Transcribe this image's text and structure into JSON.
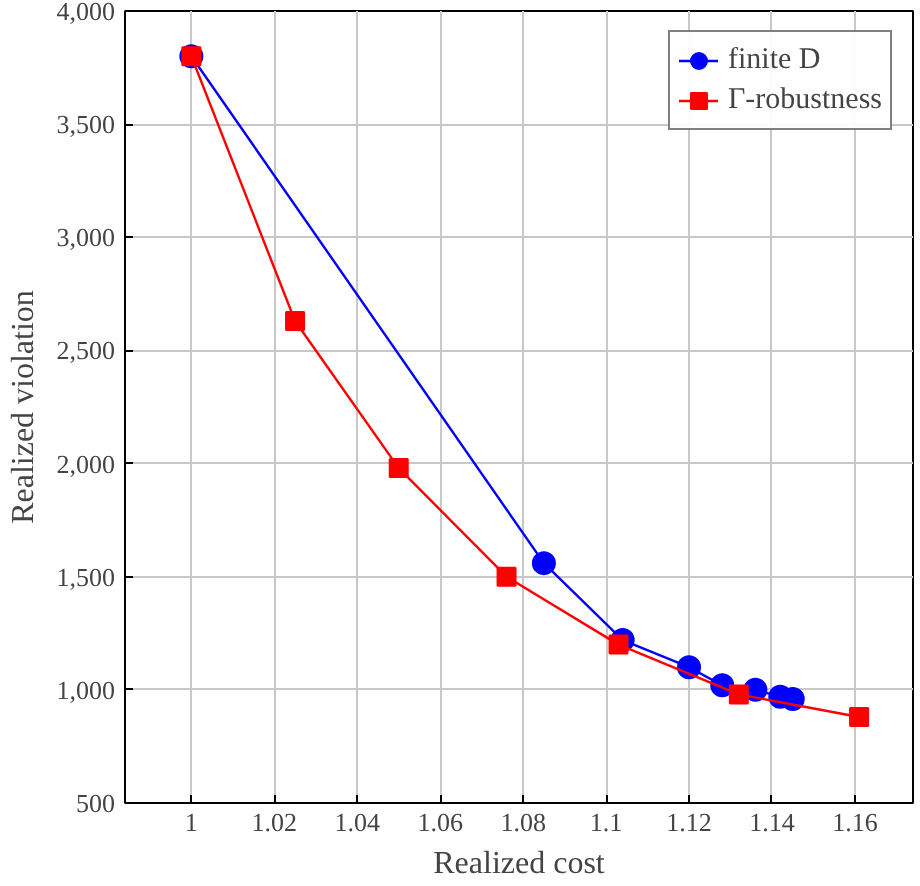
{
  "chart_data": {
    "type": "line",
    "xlabel": "Realized cost",
    "ylabel": "Realized violation",
    "xlim": [
      0.984,
      1.174
    ],
    "ylim": [
      500,
      4000
    ],
    "xticks": [
      1,
      1.02,
      1.04,
      1.06,
      1.08,
      1.1,
      1.12,
      1.14,
      1.16
    ],
    "yticks": [
      {
        "value": 500,
        "label": "500"
      },
      {
        "value": 1000,
        "label": "1,000"
      },
      {
        "value": 1500,
        "label": "1,500"
      },
      {
        "value": 2000,
        "label": "2,000"
      },
      {
        "value": 2500,
        "label": "2,500"
      },
      {
        "value": 3000,
        "label": "3,000"
      },
      {
        "value": 3500,
        "label": "3,500"
      },
      {
        "value": 4000,
        "label": "4,000"
      }
    ],
    "grid": true,
    "legend": "top right",
    "line_style": "solid",
    "series": [
      {
        "name": "finite D",
        "color": "#0000ff",
        "marker": "circle",
        "x": [
          1,
          1.085,
          1.104,
          1.12,
          1.128,
          1.136,
          1.142,
          1.145
        ],
        "values": [
          3800,
          1560,
          1220,
          1100,
          1020,
          1000,
          970,
          960
        ]
      },
      {
        "name": "Γ-robustness",
        "color": "#ff0000",
        "marker": "square",
        "x": [
          1,
          1.025,
          1.05,
          1.076,
          1.103,
          1.132,
          1.161
        ],
        "values": [
          3800,
          2630,
          1980,
          1500,
          1200,
          980,
          880
        ]
      }
    ]
  }
}
